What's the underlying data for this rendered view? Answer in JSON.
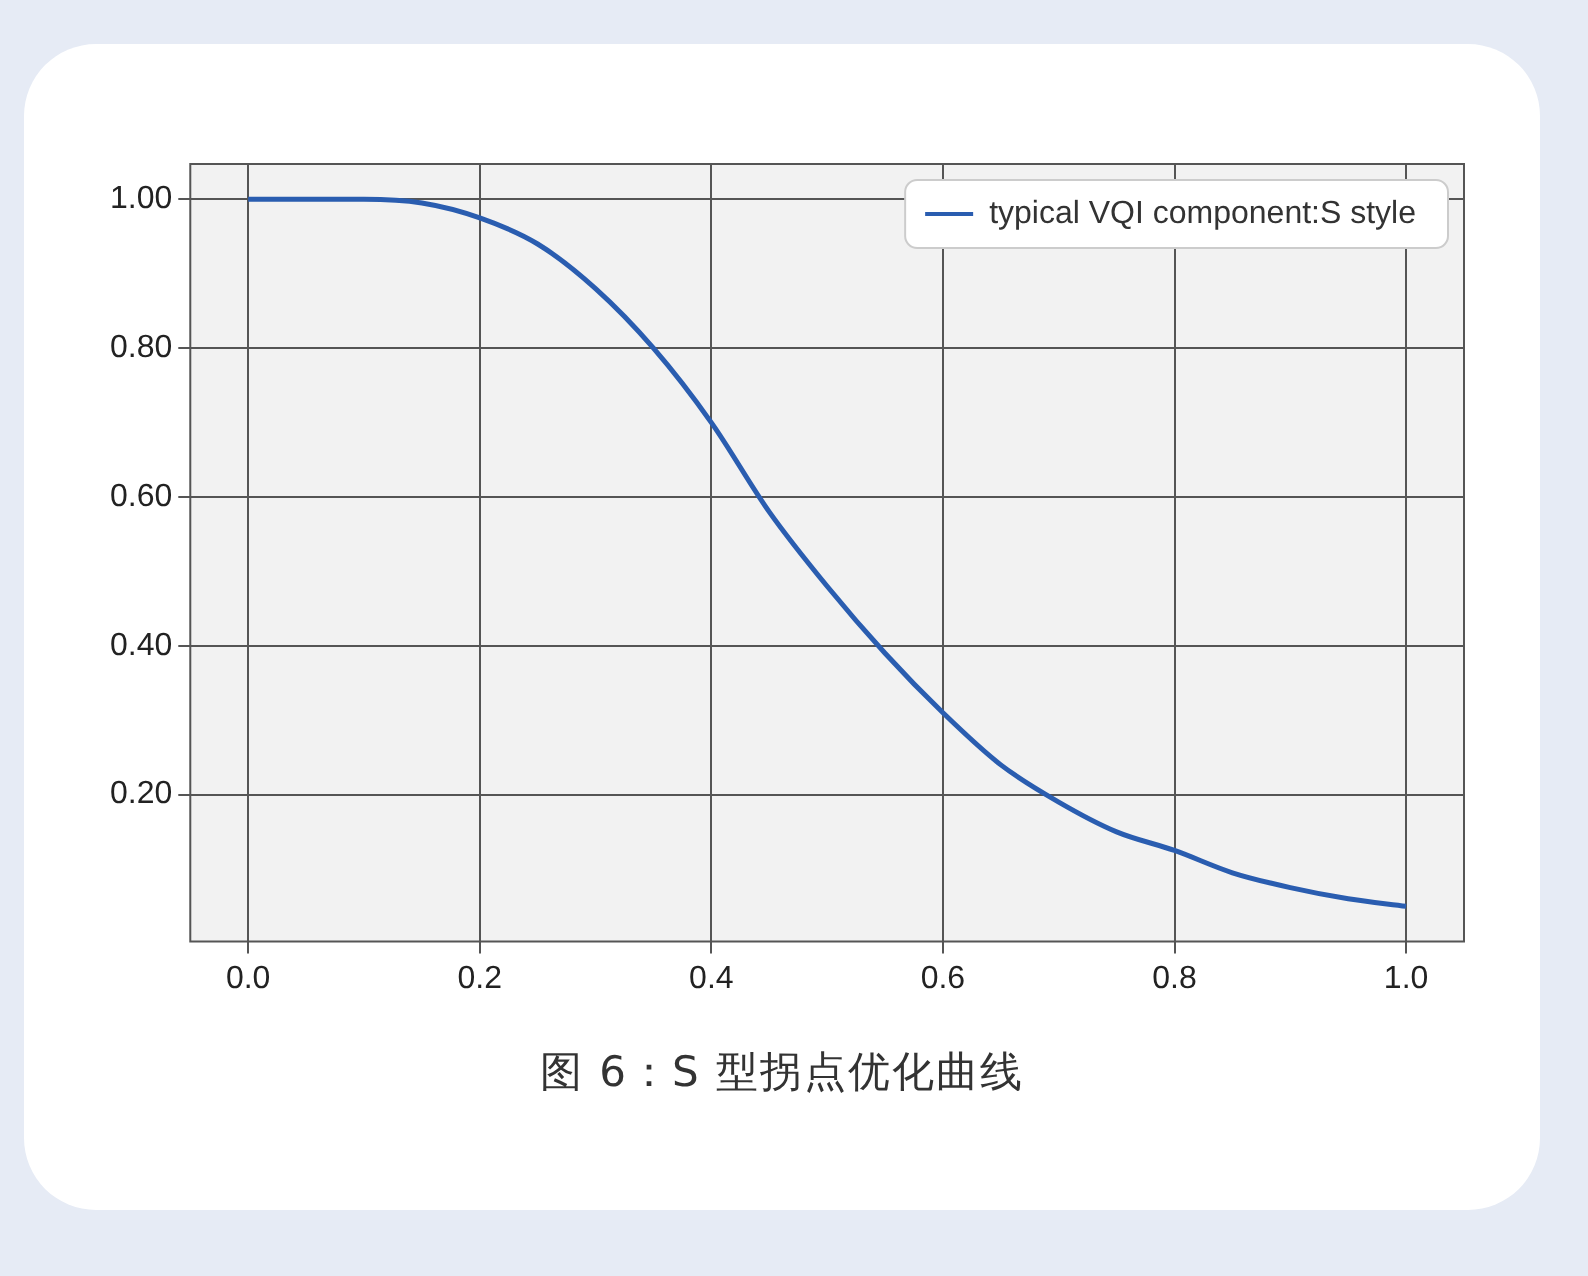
{
  "chart_data": {
    "type": "line",
    "annotations": [
      "图 6：S 型拐点优化曲线"
    ],
    "x": [
      0,
      0.05,
      0.1,
      0.15,
      0.2,
      0.25,
      0.3,
      0.35,
      0.4,
      0.45,
      0.5,
      0.55,
      0.6,
      0.65,
      0.7,
      0.75,
      0.8,
      0.85,
      0.9,
      0.95,
      1.0
    ],
    "series": [
      {
        "name": "typical VQI component:S style",
        "color": "#2a5db0",
        "values": [
          1.0,
          1.0,
          1.0,
          0.995,
          0.975,
          0.94,
          0.88,
          0.8,
          0.7,
          0.58,
          0.48,
          0.39,
          0.31,
          0.24,
          0.19,
          0.15,
          0.125,
          0.095,
          0.075,
          0.06,
          0.05
        ]
      }
    ],
    "xlim": [
      -0.05,
      1.05
    ],
    "ylim": [
      0.0025,
      1.0475
    ],
    "xticks": [
      {
        "value": 0,
        "label": "0.0"
      },
      {
        "value": 0.2,
        "label": "0.2"
      },
      {
        "value": 0.4,
        "label": "0.4"
      },
      {
        "value": 0.6,
        "label": "0.6"
      },
      {
        "value": 0.8,
        "label": "0.8"
      },
      {
        "value": 1.0,
        "label": "1.0"
      }
    ],
    "yticks": [
      {
        "value": 0.2,
        "label": "0.20"
      },
      {
        "value": 0.4,
        "label": "0.40"
      },
      {
        "value": 0.6,
        "label": "0.60"
      },
      {
        "value": 0.8,
        "label": "0.80"
      },
      {
        "value": 1.0,
        "label": "1.00"
      }
    ],
    "grid": true,
    "legend": "top right",
    "marker": "none",
    "line_style": "solid"
  }
}
